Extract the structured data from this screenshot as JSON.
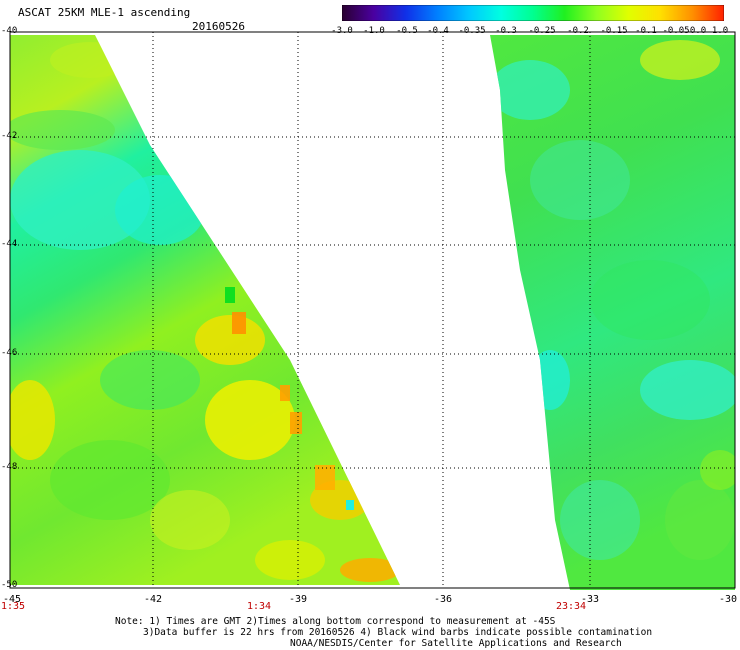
{
  "header": {
    "title": "ASCAT 25KM MLE-1 ascending",
    "date": "20160526"
  },
  "colorbar": {
    "labels": [
      "-3.0",
      "-1.0",
      "-0.5",
      "-0.4",
      "-0.35",
      "-0.3",
      "-0.25",
      "-0.2",
      "-0.15",
      "-0.1",
      "-0.05",
      "0.0",
      "1.0"
    ],
    "colors": [
      "#2a0030",
      "#4a00a0",
      "#1030e8",
      "#0080ff",
      "#00c8ff",
      "#00ffe0",
      "#00ff90",
      "#20f020",
      "#90ff20",
      "#e0ff00",
      "#ffe000",
      "#ff9000",
      "#ff2000"
    ]
  },
  "map": {
    "lat_labels": [
      "-40",
      "-42",
      "-44",
      "-46",
      "-48",
      "-50"
    ],
    "lon_labels": [
      "-45",
      "-42",
      "-39",
      "-36",
      "-33",
      "-30"
    ],
    "time_labels": [
      "1:35",
      "1:34",
      "23:34"
    ],
    "time_color": "#c00000",
    "grid_line_style": "dotted"
  },
  "footer": {
    "line1": "Note: 1) Times are GMT 2)Times along bottom correspond to measurement at -45S",
    "line2": "3)Data buffer is 22 hrs from 20160526 4) Black wind barbs indicate possible contamination",
    "line3": "NOAA/NESDIS/Center for Satellite Applications and Research"
  }
}
